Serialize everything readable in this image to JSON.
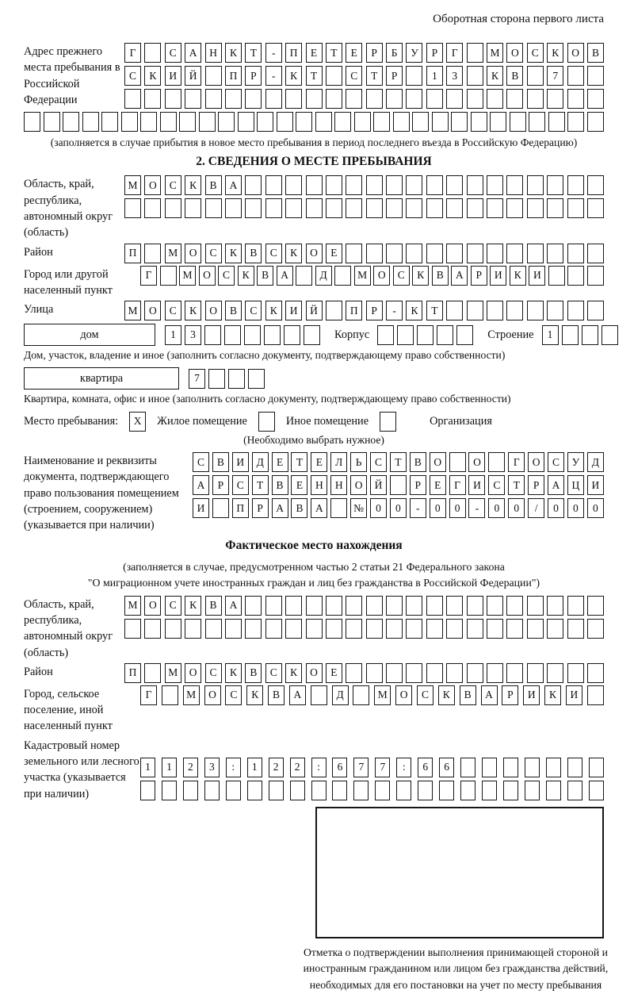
{
  "header": {
    "side_note": "Оборотная сторона первого листа"
  },
  "prev_address": {
    "label": "Адрес прежнего места пребывания в Российской Федерации",
    "rows": [
      [
        "Г",
        "",
        "С",
        "А",
        "Н",
        "К",
        "Т",
        "-",
        "П",
        "Е",
        "Т",
        "Е",
        "Р",
        "Б",
        "У",
        "Р",
        "Г",
        "",
        "М",
        "О",
        "С",
        "К",
        "О",
        "В"
      ],
      [
        "С",
        "К",
        "И",
        "Й",
        "",
        "П",
        "Р",
        "-",
        "К",
        "Т",
        "",
        "С",
        "Т",
        "Р",
        "",
        "1",
        "3",
        "",
        "К",
        "В",
        "",
        "7",
        "",
        ""
      ],
      [
        "",
        "",
        "",
        "",
        "",
        "",
        "",
        "",
        "",
        "",
        "",
        "",
        "",
        "",
        "",
        "",
        "",
        "",
        "",
        "",
        "",
        "",
        "",
        ""
      ],
      [
        "",
        "",
        "",
        "",
        "",
        "",
        "",
        "",
        "",
        "",
        "",
        "",
        "",
        "",
        "",
        "",
        "",
        "",
        "",
        "",
        "",
        "",
        "",
        "",
        "",
        "",
        "",
        "",
        "",
        ""
      ]
    ],
    "note": "(заполняется в случае прибытия в новое место пребывания в период последнего въезда в Российскую Федерацию)"
  },
  "section2": {
    "title": "2. СВЕДЕНИЯ О МЕСТЕ ПРЕБЫВАНИЯ"
  },
  "oblast1": {
    "label": "Область, край, республика, автономный округ (область)",
    "rows": [
      [
        "М",
        "О",
        "С",
        "К",
        "В",
        "А",
        "",
        "",
        "",
        "",
        "",
        "",
        "",
        "",
        "",
        "",
        "",
        "",
        "",
        "",
        "",
        "",
        "",
        ""
      ],
      [
        "",
        "",
        "",
        "",
        "",
        "",
        "",
        "",
        "",
        "",
        "",
        "",
        "",
        "",
        "",
        "",
        "",
        "",
        "",
        "",
        "",
        "",
        "",
        ""
      ]
    ]
  },
  "rayon1": {
    "label": "Район",
    "cells": [
      "П",
      "",
      "М",
      "О",
      "С",
      "К",
      "В",
      "С",
      "К",
      "О",
      "Е",
      "",
      "",
      "",
      "",
      "",
      "",
      "",
      "",
      "",
      "",
      "",
      "",
      ""
    ]
  },
  "gorod1": {
    "label": "Город или другой населенный пункт",
    "cells": [
      "Г",
      "",
      "М",
      "О",
      "С",
      "К",
      "В",
      "А",
      "",
      "Д",
      "",
      "М",
      "О",
      "С",
      "К",
      "В",
      "А",
      "Р",
      "И",
      "К",
      "И",
      "",
      "",
      ""
    ]
  },
  "ulitsa": {
    "label": "Улица",
    "cells": [
      "М",
      "О",
      "С",
      "К",
      "О",
      "В",
      "С",
      "К",
      "И",
      "Й",
      "",
      "П",
      "Р",
      "-",
      "К",
      "Т",
      "",
      "",
      "",
      "",
      "",
      "",
      "",
      ""
    ]
  },
  "house": {
    "box_label": "дом",
    "cells": [
      "1",
      "3",
      "",
      "",
      "",
      "",
      "",
      ""
    ],
    "korpus_label": "Корпус",
    "korpus_cells": [
      "",
      "",
      "",
      "",
      ""
    ],
    "stroenie_label": "Строение",
    "stroenie_cells": [
      "1",
      "",
      "",
      ""
    ],
    "caption": "Дом, участок, владение и иное (заполнить согласно документу, подтверждающему право собственности)"
  },
  "flat": {
    "box_label": "квартира",
    "cells": [
      "7",
      "",
      "",
      ""
    ],
    "caption": "Квартира, комната, офис и иное (заполнить согласно документу, подтверждающему право собственности)"
  },
  "mesto": {
    "label": "Место пребывания:",
    "options": [
      {
        "mark": "X",
        "text": "Жилое помещение"
      },
      {
        "mark": "",
        "text": "Иное помещение"
      },
      {
        "mark": "",
        "text": "Организация"
      }
    ],
    "note": "(Необходимо выбрать нужное)"
  },
  "doc_block": {
    "label": "Наименование и реквизиты документа, подтверждающего право пользования помещением (строением, сооружением) (указывается при наличии)",
    "rows": [
      [
        "С",
        "В",
        "И",
        "Д",
        "Е",
        "Т",
        "Е",
        "Л",
        "Ь",
        "С",
        "Т",
        "В",
        "О",
        "",
        "О",
        "",
        "Г",
        "О",
        "С",
        "У",
        "Д"
      ],
      [
        "А",
        "Р",
        "С",
        "Т",
        "В",
        "Е",
        "Н",
        "Н",
        "О",
        "Й",
        "",
        "Р",
        "Е",
        "Г",
        "И",
        "С",
        "Т",
        "Р",
        "А",
        "Ц",
        "И"
      ],
      [
        "И",
        "",
        "П",
        "Р",
        "А",
        "В",
        "А",
        "",
        "№",
        "0",
        "0",
        "-",
        "0",
        "0",
        "-",
        "0",
        "0",
        "/",
        "0",
        "0",
        "0"
      ]
    ]
  },
  "fact": {
    "title": "Фактическое место нахождения",
    "note1": "(заполняется в случае, предусмотренном частью 2 статьи 21 Федерального закона",
    "note2": "\"О миграционном учете иностранных граждан и лиц без гражданства в Российской Федерации\")"
  },
  "oblast2": {
    "label": "Область, край, республика, автономный округ (область)",
    "rows": [
      [
        "М",
        "О",
        "С",
        "К",
        "В",
        "А",
        "",
        "",
        "",
        "",
        "",
        "",
        "",
        "",
        "",
        "",
        "",
        "",
        "",
        "",
        "",
        "",
        "",
        ""
      ],
      [
        "",
        "",
        "",
        "",
        "",
        "",
        "",
        "",
        "",
        "",
        "",
        "",
        "",
        "",
        "",
        "",
        "",
        "",
        "",
        "",
        "",
        "",
        "",
        ""
      ]
    ]
  },
  "rayon2": {
    "label": "Район",
    "cells": [
      "П",
      "",
      "М",
      "О",
      "С",
      "К",
      "В",
      "С",
      "К",
      "О",
      "Е",
      "",
      "",
      "",
      "",
      "",
      "",
      "",
      "",
      "",
      "",
      "",
      "",
      ""
    ]
  },
  "gorod2": {
    "label": "Город, сельское поселение, иной населенный пункт",
    "cells": [
      "Г",
      "",
      "М",
      "О",
      "С",
      "К",
      "В",
      "А",
      "",
      "Д",
      "",
      "М",
      "О",
      "С",
      "К",
      "В",
      "А",
      "Р",
      "И",
      "К",
      "И",
      ""
    ]
  },
  "kadastr": {
    "label": "Кадастровый номер земельного или лесного участка (указывается при наличии)",
    "rows": [
      [
        "1",
        "1",
        "2",
        "3",
        ":",
        "1",
        "2",
        "2",
        ":",
        "6",
        "7",
        "7",
        ":",
        "6",
        "6",
        "",
        "",
        "",
        "",
        "",
        "",
        ""
      ],
      [
        "",
        "",
        "",
        "",
        "",
        "",
        "",
        "",
        "",
        "",
        "",
        "",
        "",
        "",
        "",
        "",
        "",
        "",
        "",
        "",
        "",
        ""
      ]
    ]
  },
  "stamp": {
    "caption": "Отметка о подтверждении выполнения принимающей стороной и иностранным гражданином или лицом без гражданства действий, необходимых для его постановки на учет по месту пребывания"
  }
}
